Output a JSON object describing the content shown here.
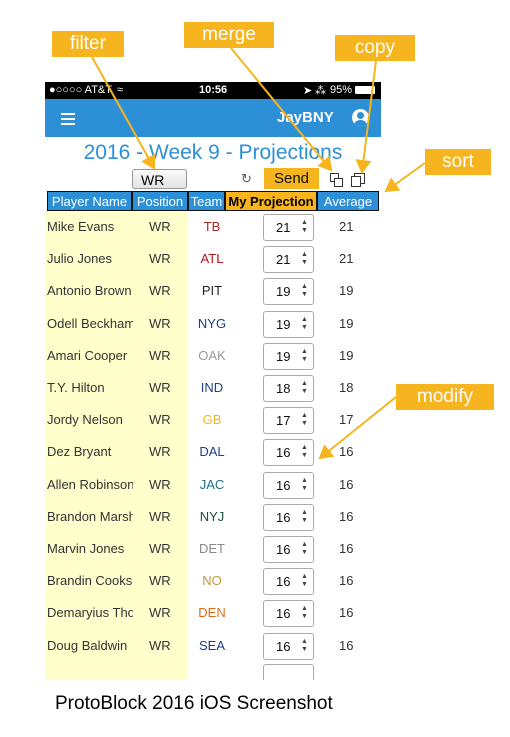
{
  "annotations": {
    "filter": "filter",
    "merge": "merge",
    "copy": "copy",
    "sort": "sort",
    "modify": "modify"
  },
  "status_bar": {
    "carrier": "●○○○○ AT&T",
    "time": "10:56",
    "battery": "95%"
  },
  "nav": {
    "username": "JayBNY"
  },
  "page_title": "2016 - Week 9 - Projections",
  "toolbar": {
    "filter_value": "WR",
    "send_label": "Send"
  },
  "table": {
    "headers": [
      "Player Name",
      "Position",
      "Team",
      "My Projection",
      "Average"
    ],
    "rows": [
      {
        "name": "Mike Evans",
        "pos": "WR",
        "team": "TB",
        "team_color": "#a52a2a",
        "proj": "21",
        "avg": "21"
      },
      {
        "name": "Julio Jones",
        "pos": "WR",
        "team": "ATL",
        "team_color": "#b5121b",
        "proj": "21",
        "avg": "21"
      },
      {
        "name": "Antonio Brown",
        "pos": "WR",
        "team": "PIT",
        "team_color": "#222222",
        "proj": "19",
        "avg": "19"
      },
      {
        "name": "Odell Beckham",
        "pos": "WR",
        "team": "NYG",
        "team_color": "#1c3f8c",
        "proj": "19",
        "avg": "19"
      },
      {
        "name": "Amari Cooper",
        "pos": "WR",
        "team": "OAK",
        "team_color": "#9a9a9a",
        "proj": "19",
        "avg": "19"
      },
      {
        "name": "T.Y. Hilton",
        "pos": "WR",
        "team": "IND",
        "team_color": "#1c3f8c",
        "proj": "18",
        "avg": "18"
      },
      {
        "name": "Jordy Nelson",
        "pos": "WR",
        "team": "GB",
        "team_color": "#f6b51e",
        "proj": "17",
        "avg": "17"
      },
      {
        "name": "Dez Bryant",
        "pos": "WR",
        "team": "DAL",
        "team_color": "#1c3f8c",
        "proj": "16",
        "avg": "16"
      },
      {
        "name": "Allen Robinson",
        "pos": "WR",
        "team": "JAC",
        "team_color": "#1f6f8b",
        "proj": "16",
        "avg": "16"
      },
      {
        "name": "Brandon Marshall",
        "pos": "WR",
        "team": "NYJ",
        "team_color": "#1d4f3a",
        "proj": "16",
        "avg": "16"
      },
      {
        "name": "Marvin Jones",
        "pos": "WR",
        "team": "DET",
        "team_color": "#8a8a8a",
        "proj": "16",
        "avg": "16"
      },
      {
        "name": "Brandin Cooks",
        "pos": "WR",
        "team": "NO",
        "team_color": "#c49a3a",
        "proj": "16",
        "avg": "16"
      },
      {
        "name": "Demaryius Thomas",
        "pos": "WR",
        "team": "DEN",
        "team_color": "#e06a1b",
        "proj": "16",
        "avg": "16"
      },
      {
        "name": "Doug Baldwin",
        "pos": "WR",
        "team": "SEA",
        "team_color": "#1c3f8c",
        "proj": "16",
        "avg": "16"
      }
    ]
  },
  "caption": "ProtoBlock 2016 iOS Screenshot",
  "colors": {
    "accent_blue": "#2d8fd6",
    "highlight_orange": "#f6b51e",
    "pale_yellow": "#ffffcc"
  }
}
